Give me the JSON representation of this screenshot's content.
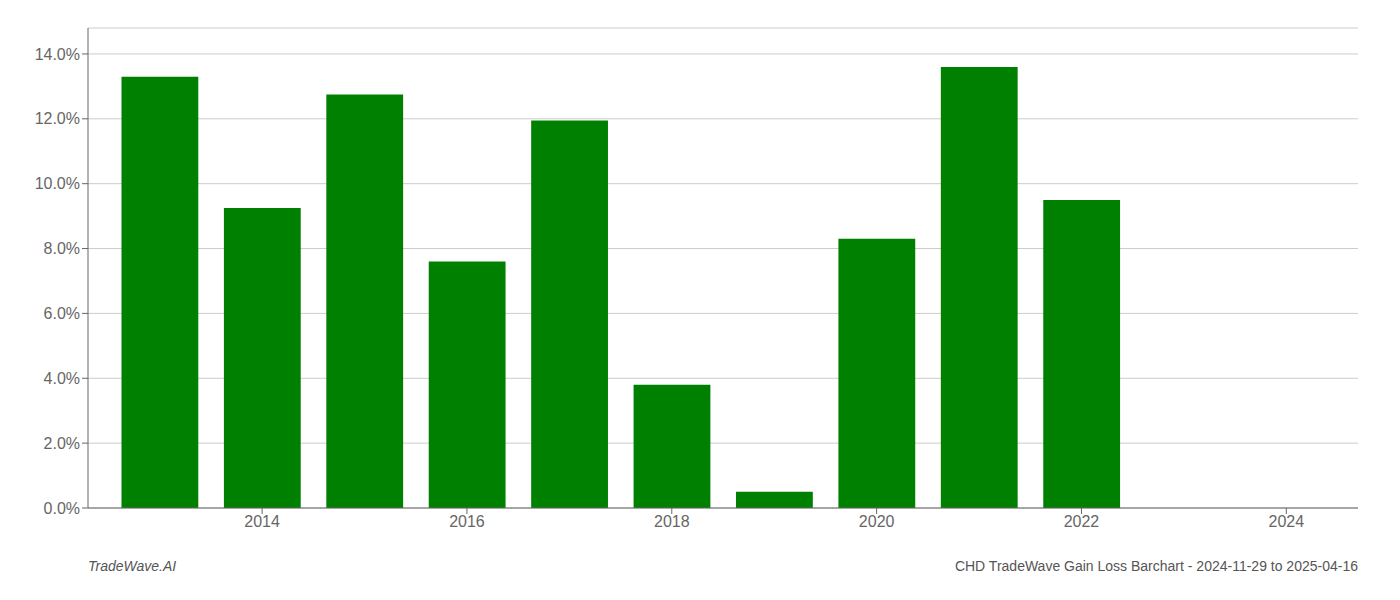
{
  "chart_data": {
    "type": "bar",
    "x": [
      2013,
      2014,
      2015,
      2016,
      2017,
      2018,
      2019,
      2020,
      2021,
      2022
    ],
    "values": [
      0.133,
      0.0925,
      0.1275,
      0.076,
      0.1195,
      0.038,
      0.005,
      0.083,
      0.136,
      0.095
    ],
    "color": "#008000",
    "xlim": [
      2012.3,
      2024.7
    ],
    "xticks": [
      2014,
      2016,
      2018,
      2020,
      2022,
      2024
    ],
    "ylim": [
      0,
      0.148
    ],
    "yticks": [
      {
        "value": 0.0,
        "label": "0.0%"
      },
      {
        "value": 0.02,
        "label": "2.0%"
      },
      {
        "value": 0.04,
        "label": "4.0%"
      },
      {
        "value": 0.06,
        "label": "6.0%"
      },
      {
        "value": 0.08,
        "label": "8.0%"
      },
      {
        "value": 0.1,
        "label": "10.0%"
      },
      {
        "value": 0.12,
        "label": "12.0%"
      },
      {
        "value": 0.14,
        "label": "14.0%"
      }
    ],
    "grid": true,
    "annotations": [
      "TradeWave.AI",
      "CHD TradeWave Gain Loss Barchart - 2024-11-29 to 2025-04-16"
    ]
  }
}
